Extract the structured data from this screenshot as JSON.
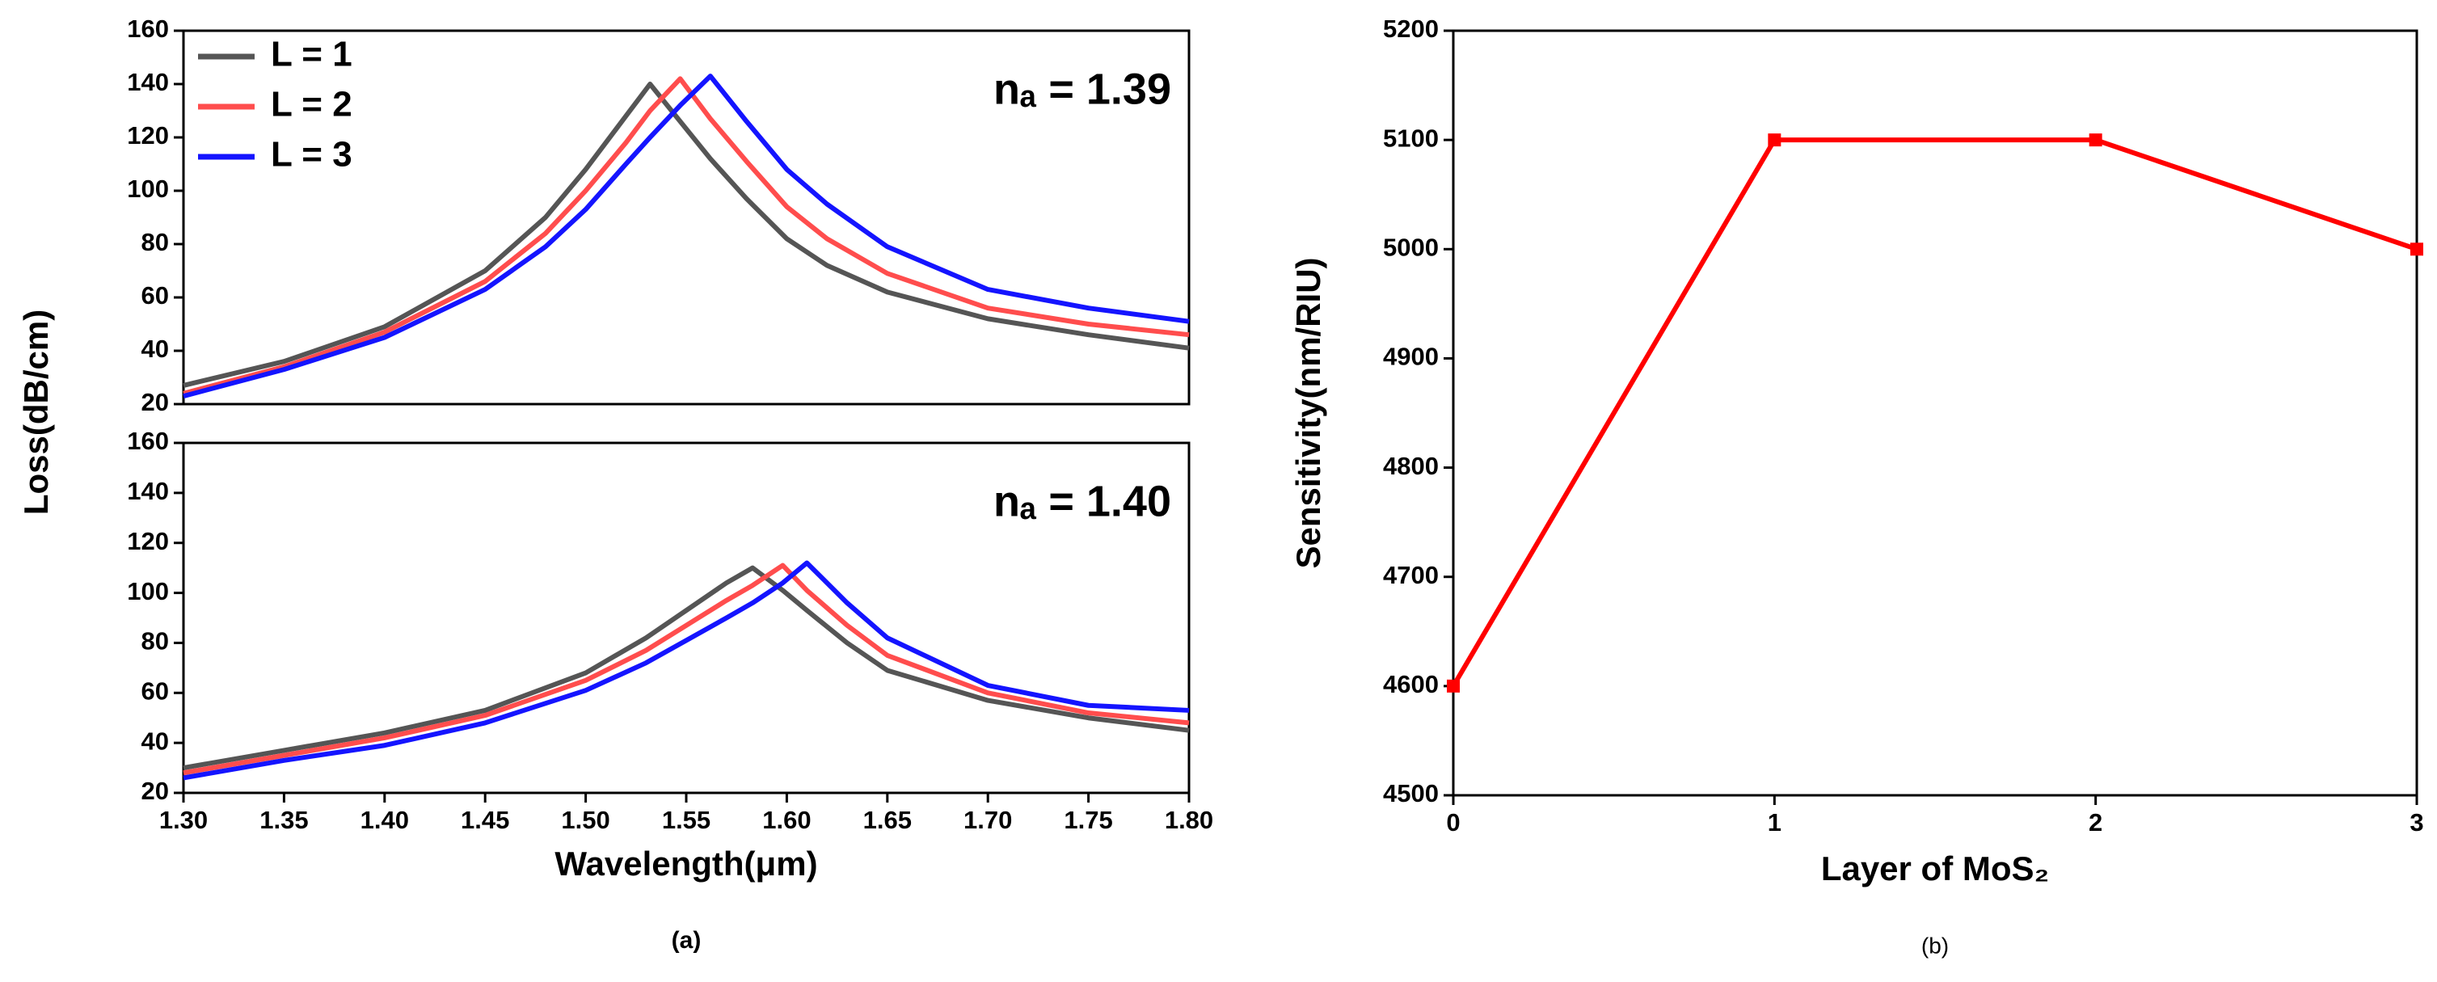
{
  "chart_data": [
    {
      "type": "line",
      "annotation": "nₐ = 1.39",
      "ylabel": "Loss(dB/cm)",
      "legend": "upper left",
      "x": [
        1.3,
        1.35,
        1.4,
        1.45,
        1.48,
        1.5,
        1.52,
        1.532,
        1.547,
        1.562,
        1.58,
        1.6,
        1.62,
        1.65,
        1.7,
        1.75,
        1.8
      ],
      "xlim": [
        1.3,
        1.8
      ],
      "ylim": [
        20,
        160
      ],
      "yticks": [
        20,
        40,
        60,
        80,
        100,
        120,
        140,
        160
      ],
      "series": [
        {
          "name": "L = 1",
          "color": "#555555",
          "values": [
            27,
            36,
            49,
            70,
            90,
            108,
            128,
            140,
            126,
            112,
            97,
            82,
            72,
            62,
            52,
            46,
            41
          ]
        },
        {
          "name": "L = 2",
          "color": "#ff4d4d",
          "values": [
            24,
            34,
            47,
            66,
            84,
            100,
            118,
            130,
            142,
            127,
            111,
            94,
            82,
            69,
            56,
            50,
            46
          ]
        },
        {
          "name": "L = 3",
          "color": "#1414ff",
          "values": [
            23,
            33,
            45,
            63,
            79,
            93,
            110,
            120,
            132,
            143,
            126,
            108,
            95,
            79,
            63,
            56,
            51
          ]
        }
      ]
    },
    {
      "type": "line",
      "annotation": "nₐ = 1.40",
      "xlabel": "Wavelength(μm)",
      "caption": "(a)",
      "x": [
        1.3,
        1.35,
        1.4,
        1.45,
        1.5,
        1.53,
        1.55,
        1.57,
        1.583,
        1.598,
        1.61,
        1.63,
        1.65,
        1.7,
        1.75,
        1.8
      ],
      "xlim": [
        1.3,
        1.8
      ],
      "xticks": [
        {
          "value": 1.3,
          "label": "1.30"
        },
        1.35,
        {
          "value": 1.4,
          "label": "1.40"
        },
        1.45,
        {
          "value": 1.5,
          "label": "1.50"
        },
        1.55,
        {
          "value": 1.6,
          "label": "1.60"
        },
        1.65,
        {
          "value": 1.7,
          "label": "1.70"
        },
        1.75,
        {
          "value": 1.8,
          "label": "1.80"
        }
      ],
      "ylim": [
        20,
        160
      ],
      "yticks": [
        20,
        40,
        60,
        80,
        100,
        120,
        140,
        160
      ],
      "series": [
        {
          "color": "#555555",
          "values": [
            30,
            37,
            44,
            53,
            68,
            82,
            93,
            104,
            110,
            101,
            93,
            80,
            69,
            57,
            50,
            45
          ]
        },
        {
          "color": "#ff4d4d",
          "values": [
            28,
            35,
            42,
            51,
            65,
            77,
            87,
            97,
            103,
            111,
            101,
            87,
            75,
            60,
            52,
            48
          ]
        },
        {
          "color": "#1414ff",
          "values": [
            26,
            33,
            39,
            48,
            61,
            72,
            81,
            90,
            96,
            104,
            112,
            96,
            82,
            63,
            55,
            53
          ]
        }
      ]
    },
    {
      "type": "line",
      "xlabel": "Layer of MoS₂",
      "ylabel": "Sensitivity(nm/RIU)",
      "caption": "(b)",
      "x": [
        0,
        1,
        2,
        3
      ],
      "xlim": [
        0,
        3
      ],
      "xticks": [
        0,
        1,
        2,
        3
      ],
      "ylim": [
        4500,
        5200
      ],
      "yticks": [
        4500,
        4600,
        4700,
        4800,
        4900,
        5000,
        5100,
        5200
      ],
      "series": [
        {
          "color": "#ff0000",
          "marker": "square",
          "values": [
            4600,
            5100,
            5100,
            5000
          ]
        }
      ]
    }
  ]
}
